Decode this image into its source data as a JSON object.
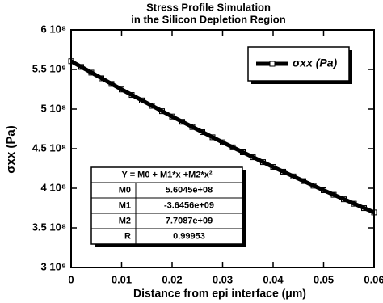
{
  "chart_data": {
    "type": "scatter",
    "title": [
      "Stress Profile Simulation",
      "in the Silicon Depletion Region"
    ],
    "x_label": "Distance from epi interface (μm)",
    "y_label": "σxx (Pa)",
    "x": [
      0,
      0.002,
      0.004,
      0.006,
      0.008,
      0.01,
      0.012,
      0.014,
      0.016,
      0.018,
      0.02,
      0.022,
      0.024,
      0.026,
      0.028,
      0.03,
      0.032,
      0.034,
      0.036,
      0.038,
      0.04,
      0.042,
      0.044,
      0.046,
      0.048,
      0.05,
      0.052,
      0.054,
      0.056,
      0.058,
      0.06
    ],
    "series": [
      {
        "name": "σxx (Pa)",
        "color": "#000000",
        "marker": "square",
        "values": [
          560450000,
          553190000,
          545990000,
          538850000,
          531780000,
          524760000,
          517810000,
          510920000,
          504090000,
          497330000,
          490620000,
          483980000,
          477400000,
          470880000,
          464420000,
          458020000,
          451680000,
          445410000,
          439200000,
          433060000,
          426970000,
          420980000,
          414960000,
          409060000,
          403220000,
          397440000,
          391720000,
          386070000,
          380470000,
          374940000,
          369500000
        ]
      },
      {
        "color": "#000000",
        "line_width": 5,
        "x": [
          0,
          0.01,
          0.02,
          0.03,
          0.04,
          0.05,
          0.06
        ],
        "values": [
          560450000,
          524760000,
          490620000,
          458020000,
          426970000,
          397440000,
          369500000
        ]
      }
    ],
    "xlim": [
      0,
      0.06
    ],
    "xticks": [
      0,
      0.01,
      0.02,
      0.03,
      0.04,
      0.05,
      0.06
    ],
    "ylim": [
      300000000,
      600000000
    ],
    "yticks": [
      {
        "value": 300000000,
        "label": "3 10⁸"
      },
      {
        "value": 350000000,
        "label": "3.5 10⁸"
      },
      {
        "value": 400000000,
        "label": "4 10⁸"
      },
      {
        "value": 450000000,
        "label": "4.5 10⁸"
      },
      {
        "value": 500000000,
        "label": "5 10⁸"
      },
      {
        "value": 550000000,
        "label": "5.5 10⁸"
      },
      {
        "value": 600000000,
        "label": "6 10⁸"
      }
    ],
    "legend": "top-right",
    "fit_table": {
      "header": "Y = M0 + M1*x +M2*x²",
      "rows": [
        [
          "M0",
          "5.6045e+08"
        ],
        [
          "M1",
          "-3.6456e+09"
        ],
        [
          "M2",
          "7.7087e+09"
        ],
        [
          "R",
          "0.99953"
        ]
      ]
    }
  }
}
